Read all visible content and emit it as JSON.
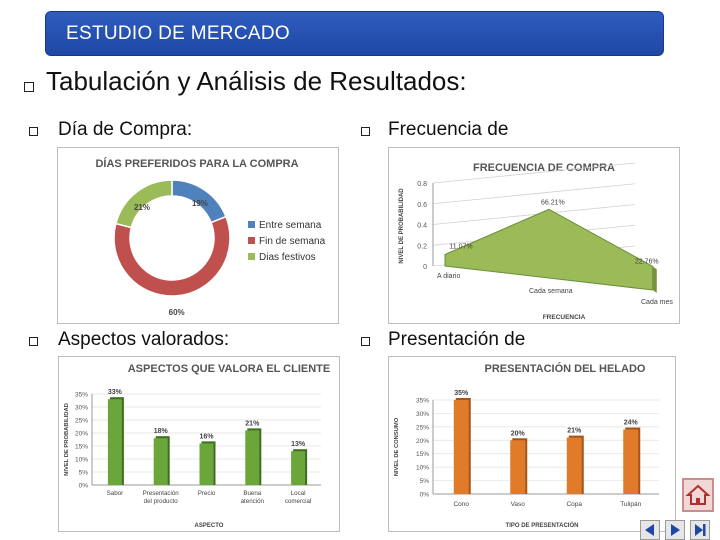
{
  "header": {
    "title": "ESTUDIO DE MERCADO"
  },
  "heading": "Tabulación y Análisis de Resultados:",
  "subheadings": {
    "dia": "Día de Compra:",
    "frecuencia": "Frecuencia de",
    "aspectos": "Aspectos valorados:",
    "presentacion": "Presentación de"
  },
  "chart_data": [
    {
      "type": "pie",
      "variant": "doughnut",
      "title": "DÍAS PREFERIDOS PARA LA COMPRA",
      "categories": [
        "Entre semana",
        "Fin de semana",
        "Dias festivos"
      ],
      "values": [
        19,
        60,
        21
      ],
      "labels": [
        "19%",
        "60%",
        "21%"
      ],
      "colors": [
        "#4f81bd",
        "#c0504d",
        "#9bbb59"
      ],
      "legend": "right"
    },
    {
      "type": "area",
      "title": "FRECUENCIA DE COMPRA",
      "categories": [
        "A diario",
        "Cada semana",
        "Cada mes"
      ],
      "values": [
        0.1107,
        0.6621,
        0.2276
      ],
      "labels": [
        "11.07%",
        "66.21%",
        "22.76%"
      ],
      "ylabel": "NIVEL DE PROBABILIDAD",
      "xlabel": "FRECUENCIA",
      "yticks": [
        "0",
        "0.2",
        "0.4",
        "0.6",
        "0.8"
      ],
      "ylim": [
        0,
        0.8
      ],
      "color": "#9bbb59"
    },
    {
      "type": "bar",
      "title": "ASPECTOS QUE VALORA EL CLIENTE",
      "categories": [
        "Sabor",
        "Presentación del producto",
        "Precio",
        "Buena atención",
        "Local comercial"
      ],
      "tick_lines": [
        [
          "Sabor"
        ],
        [
          "Presentación",
          "del producto"
        ],
        [
          "Precio"
        ],
        [
          "Buena",
          "atención"
        ],
        [
          "Local",
          "comercial"
        ]
      ],
      "values": [
        33,
        18,
        16,
        21,
        13
      ],
      "labels": [
        "33%",
        "18%",
        "16%",
        "21%",
        "13%"
      ],
      "ylabel": "NIVEL DE PROBABILIDAD",
      "xlabel": "ASPECTO",
      "yticks": [
        "0%",
        "5%",
        "10%",
        "15%",
        "20%",
        "25%",
        "30%",
        "35%"
      ],
      "ylim": [
        0,
        35
      ],
      "color": "#6aa63a"
    },
    {
      "type": "bar",
      "title": "PRESENTACIÓN DEL HELADO",
      "categories": [
        "Cono",
        "Vaso",
        "Copa",
        "Tulipán"
      ],
      "values": [
        35,
        20,
        21,
        24
      ],
      "labels": [
        "35%",
        "20%",
        "21%",
        "24%"
      ],
      "ylabel": "NIVEL DE CONSUMO",
      "xlabel": "TIPO DE PRESENTACIÓN",
      "yticks": [
        "0%",
        "5%",
        "10%",
        "15%",
        "20%",
        "25%",
        "30%",
        "35%"
      ],
      "ylim": [
        0,
        35
      ],
      "color": "#e07b2a"
    }
  ],
  "nav": {
    "icons": [
      "home-icon",
      "prev-arrow-icon",
      "next-arrow-icon",
      "last-arrow-icon"
    ]
  }
}
